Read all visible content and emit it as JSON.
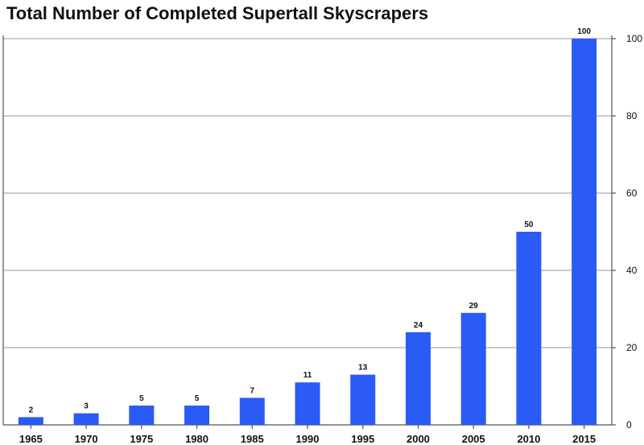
{
  "chart_data": {
    "type": "bar",
    "title": "Total Number of Completed Supertall Skyscrapers",
    "xlabel": "",
    "ylabel": "",
    "categories": [
      "1965",
      "1970",
      "1975",
      "1980",
      "1985",
      "1990",
      "1995",
      "2000",
      "2005",
      "2010",
      "2015"
    ],
    "values": [
      2,
      3,
      5,
      5,
      7,
      11,
      13,
      24,
      29,
      50,
      100
    ],
    "data_labels": [
      "2",
      "3",
      "5",
      "5",
      "7",
      "11",
      "13",
      "24",
      "29",
      "50",
      "100"
    ],
    "ylim": [
      0,
      100
    ],
    "y_ticks": [
      0,
      20,
      40,
      60,
      80,
      100
    ],
    "y_tick_labels": [
      "0",
      "20",
      "40",
      "60",
      "80",
      "100"
    ],
    "y_axis_side": "right",
    "grid": true,
    "bar_color": "#2a5bf6",
    "legend": "none"
  }
}
